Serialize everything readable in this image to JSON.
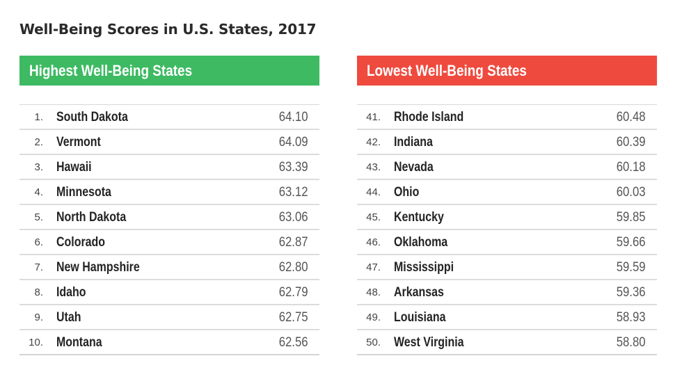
{
  "title": "Well-Being Scores in U.S. States, 2017",
  "colors": {
    "highest_header": "#3dba62",
    "lowest_header": "#ef4a3e"
  },
  "chart_data": {
    "type": "table",
    "title": "Well-Being Scores in U.S. States, 2017",
    "tables": [
      {
        "header": "Highest Well-Being States",
        "rows": [
          {
            "rank": "1.",
            "state": "South Dakota",
            "score": "64.10"
          },
          {
            "rank": "2.",
            "state": "Vermont",
            "score": "64.09"
          },
          {
            "rank": "3.",
            "state": "Hawaii",
            "score": "63.39"
          },
          {
            "rank": "4.",
            "state": "Minnesota",
            "score": "63.12"
          },
          {
            "rank": "5.",
            "state": "North Dakota",
            "score": "63.06"
          },
          {
            "rank": "6.",
            "state": "Colorado",
            "score": "62.87"
          },
          {
            "rank": "7.",
            "state": "New Hampshire",
            "score": "62.80"
          },
          {
            "rank": "8.",
            "state": "Idaho",
            "score": "62.79"
          },
          {
            "rank": "9.",
            "state": "Utah",
            "score": "62.75"
          },
          {
            "rank": "10.",
            "state": "Montana",
            "score": "62.56"
          }
        ]
      },
      {
        "header": "Lowest Well-Being States",
        "rows": [
          {
            "rank": "41.",
            "state": "Rhode Island",
            "score": "60.48"
          },
          {
            "rank": "42.",
            "state": "Indiana",
            "score": "60.39"
          },
          {
            "rank": "43.",
            "state": "Nevada",
            "score": "60.18"
          },
          {
            "rank": "44.",
            "state": "Ohio",
            "score": "60.03"
          },
          {
            "rank": "45.",
            "state": "Kentucky",
            "score": "59.85"
          },
          {
            "rank": "46.",
            "state": "Oklahoma",
            "score": "59.66"
          },
          {
            "rank": "47.",
            "state": "Mississippi",
            "score": "59.59"
          },
          {
            "rank": "48.",
            "state": "Arkansas",
            "score": "59.36"
          },
          {
            "rank": "49.",
            "state": "Louisiana",
            "score": "58.93"
          },
          {
            "rank": "50.",
            "state": "West Virginia",
            "score": "58.80"
          }
        ]
      }
    ]
  }
}
